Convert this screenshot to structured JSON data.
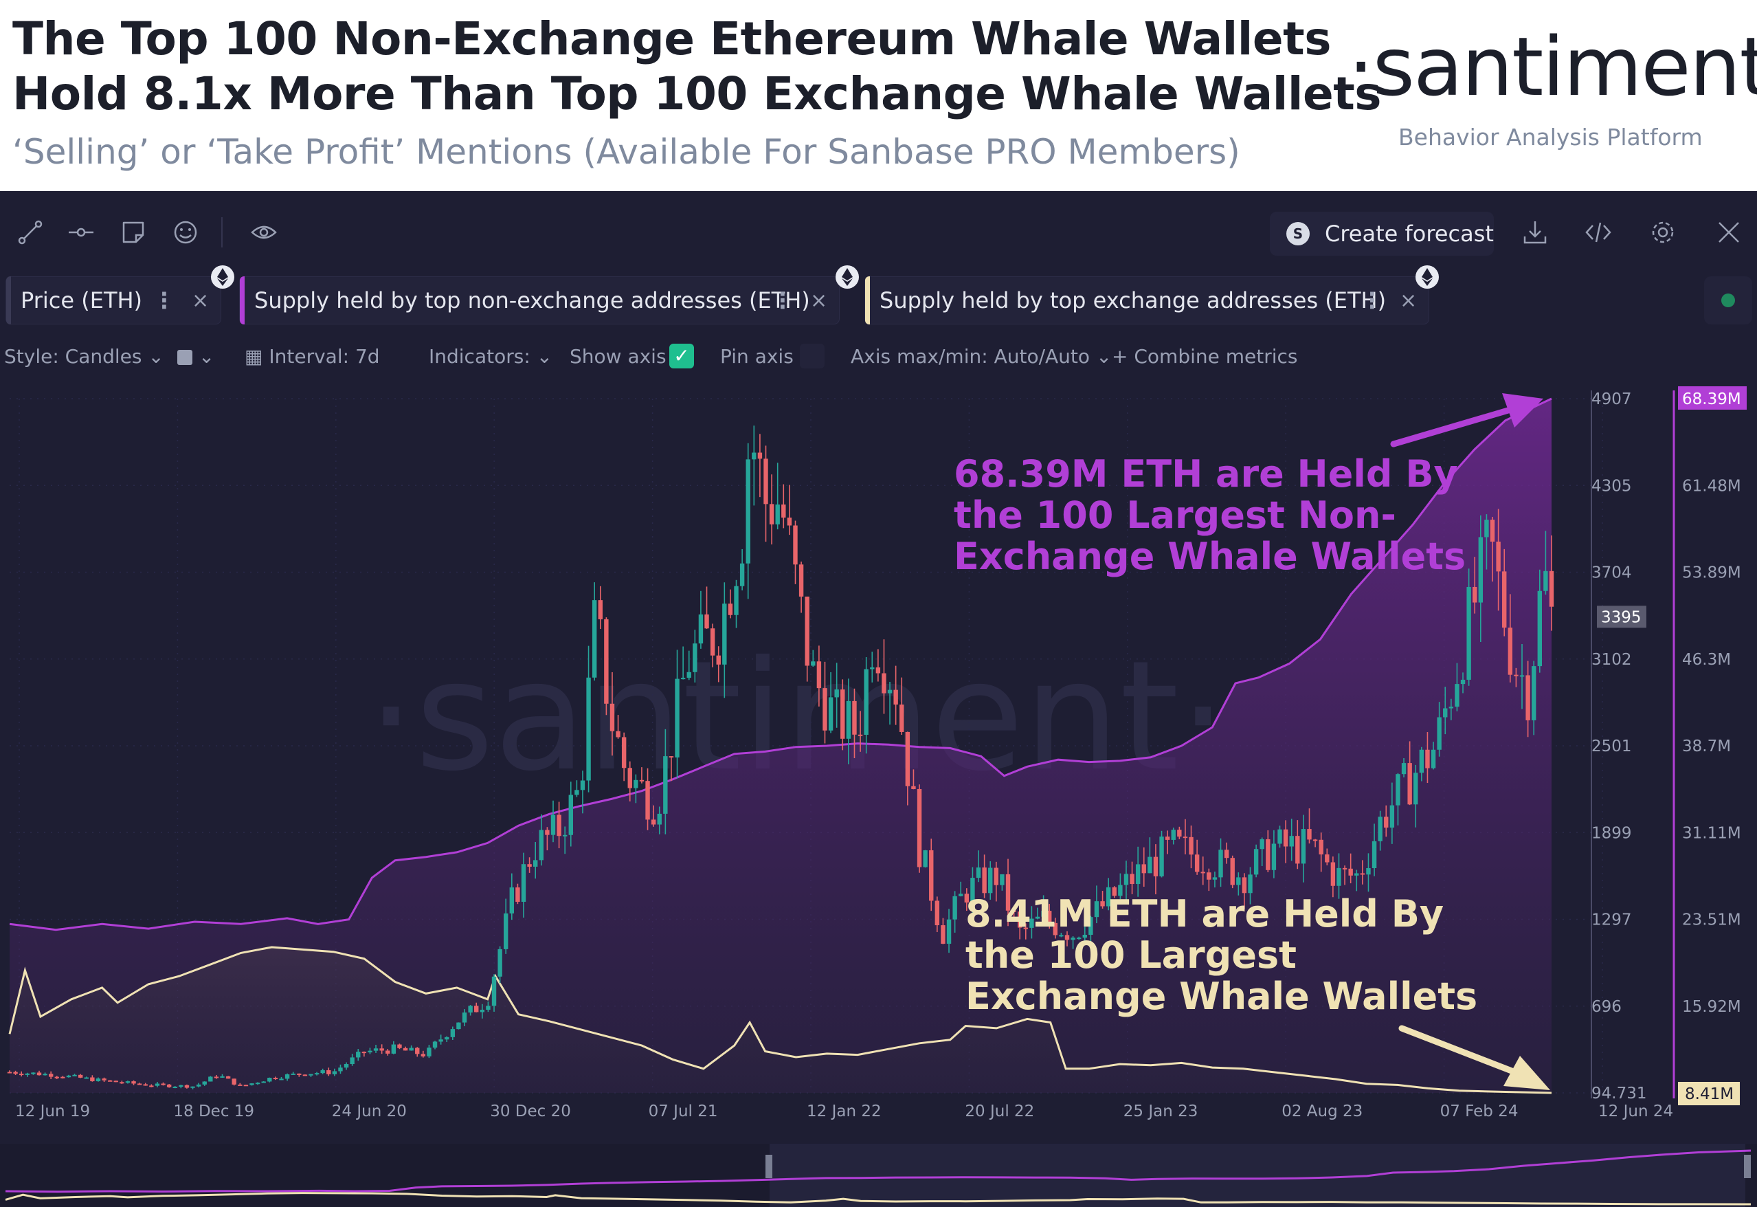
{
  "header": {
    "title_line1": "The Top 100 Non-Exchange Ethereum Whale Wallets",
    "title_line2": "Hold 8.1x More Than Top 100 Exchange Whale Wallets",
    "subtitle": "‘Selling’ or ‘Take Profit’ Mentions (Available For Sanbase PRO Members)",
    "brand": "·santiment·",
    "brand_tagline": "Behavior Analysis Platform"
  },
  "toolbar": {
    "icons": [
      "line-tool-icon",
      "horizontal-ray-icon",
      "note-icon",
      "emoji-icon",
      "eye-icon"
    ],
    "create_forecast_label": "Create forecast",
    "right_icons": [
      "download-icon",
      "code-icon",
      "settings-icon",
      "close-icon"
    ]
  },
  "metrics": [
    {
      "label": "Price (ETH)",
      "color": "#3a3a55"
    },
    {
      "label": "Supply held by top non-exchange addresses (ETH)",
      "color": "#b13fd6"
    },
    {
      "label": "Supply held by top exchange addresses (ETH)",
      "color": "#f0e2b4"
    }
  ],
  "settings": {
    "style": "Style: Candles",
    "interval": "Interval: 7d",
    "indicators": "Indicators:",
    "show_axis": "Show axis",
    "pin_axis": "Pin axis",
    "axis_maxmin": "Axis max/min: Auto/Auto",
    "combine": "Combine metrics"
  },
  "colors": {
    "background": "#1e1e33",
    "up_candle": "#26a69a",
    "down_candle": "#e9656a",
    "non_exchange": "#b13fd6",
    "exchange": "#f0e2b4",
    "annotation_purple": "#b13fd6",
    "annotation_cream": "#f0e2b4"
  },
  "chart_data": {
    "type": "candlestick+area",
    "watermark": "·santiment·",
    "x_tick_labels": [
      "12 Jun 19",
      "18 Dec 19",
      "24 Jun 20",
      "30 Dec 20",
      "07 Jul 21",
      "12 Jan 22",
      "20 Jul 22",
      "25 Jan 23",
      "02 Aug 23",
      "07 Feb 24",
      "12 Jun 24"
    ],
    "price_axis": {
      "ticks": [
        "4907",
        "4305",
        "3704",
        "3102",
        "2501",
        "1899",
        "1297",
        "696",
        "94.731"
      ],
      "min": 94.731,
      "max": 4907,
      "current": "3395"
    },
    "supply_axis": {
      "ticks": [
        "68.39M",
        "61.48M",
        "53.89M",
        "46.3M",
        "38.7M",
        "31.11M",
        "23.51M",
        "15.92M",
        "8.41M"
      ],
      "min": 8.41,
      "max": 68.39,
      "unit": "M",
      "current_non_exchange": "68.39M",
      "current_exchange": "8.41M"
    },
    "series": [
      {
        "name": "Supply held by top non-exchange addresses (ETH)",
        "unit": "M ETH",
        "points": [
          [
            0,
            23.0
          ],
          [
            0.03,
            22.5
          ],
          [
            0.06,
            23.0
          ],
          [
            0.09,
            22.6
          ],
          [
            0.12,
            23.2
          ],
          [
            0.15,
            23.0
          ],
          [
            0.18,
            23.5
          ],
          [
            0.2,
            23.0
          ],
          [
            0.22,
            23.4
          ],
          [
            0.235,
            27.0
          ],
          [
            0.25,
            28.5
          ],
          [
            0.27,
            28.8
          ],
          [
            0.29,
            29.2
          ],
          [
            0.31,
            30.0
          ],
          [
            0.33,
            31.5
          ],
          [
            0.35,
            32.5
          ],
          [
            0.37,
            33.2
          ],
          [
            0.39,
            33.8
          ],
          [
            0.41,
            34.5
          ],
          [
            0.43,
            35.5
          ],
          [
            0.45,
            36.6
          ],
          [
            0.47,
            37.7
          ],
          [
            0.49,
            37.9
          ],
          [
            0.51,
            38.3
          ],
          [
            0.53,
            38.4
          ],
          [
            0.55,
            38.6
          ],
          [
            0.57,
            38.5
          ],
          [
            0.59,
            38.3
          ],
          [
            0.61,
            38.2
          ],
          [
            0.63,
            37.5
          ],
          [
            0.645,
            35.8
          ],
          [
            0.66,
            36.6
          ],
          [
            0.68,
            37.2
          ],
          [
            0.7,
            37.0
          ],
          [
            0.72,
            37.1
          ],
          [
            0.74,
            37.4
          ],
          [
            0.76,
            38.4
          ],
          [
            0.78,
            40.0
          ],
          [
            0.795,
            43.8
          ],
          [
            0.81,
            44.3
          ],
          [
            0.83,
            45.5
          ],
          [
            0.85,
            47.6
          ],
          [
            0.87,
            51.5
          ],
          [
            0.89,
            54.5
          ],
          [
            0.91,
            57.5
          ],
          [
            0.93,
            61.0
          ],
          [
            0.95,
            64.0
          ],
          [
            0.97,
            66.5
          ],
          [
            1.0,
            68.39
          ]
        ]
      },
      {
        "name": "Supply held by top exchange addresses (ETH)",
        "unit": "M ETH",
        "points": [
          [
            0,
            13.5
          ],
          [
            0.01,
            19.0
          ],
          [
            0.02,
            15.0
          ],
          [
            0.04,
            16.5
          ],
          [
            0.06,
            17.5
          ],
          [
            0.07,
            16.2
          ],
          [
            0.09,
            17.8
          ],
          [
            0.11,
            18.5
          ],
          [
            0.13,
            19.5
          ],
          [
            0.15,
            20.5
          ],
          [
            0.17,
            21.0
          ],
          [
            0.19,
            20.8
          ],
          [
            0.21,
            20.6
          ],
          [
            0.23,
            20.0
          ],
          [
            0.25,
            18.0
          ],
          [
            0.27,
            17.0
          ],
          [
            0.29,
            17.5
          ],
          [
            0.31,
            16.5
          ],
          [
            0.315,
            18.5
          ],
          [
            0.33,
            15.2
          ],
          [
            0.35,
            14.6
          ],
          [
            0.37,
            13.9
          ],
          [
            0.39,
            13.2
          ],
          [
            0.41,
            12.5
          ],
          [
            0.43,
            11.3
          ],
          [
            0.45,
            10.5
          ],
          [
            0.47,
            12.5
          ],
          [
            0.48,
            14.5
          ],
          [
            0.49,
            12.0
          ],
          [
            0.51,
            11.5
          ],
          [
            0.53,
            11.8
          ],
          [
            0.55,
            11.7
          ],
          [
            0.57,
            12.2
          ],
          [
            0.59,
            12.7
          ],
          [
            0.61,
            13.0
          ],
          [
            0.62,
            14.2
          ],
          [
            0.64,
            14.0
          ],
          [
            0.66,
            14.8
          ],
          [
            0.675,
            14.5
          ],
          [
            0.685,
            10.5
          ],
          [
            0.7,
            10.5
          ],
          [
            0.72,
            10.9
          ],
          [
            0.74,
            10.8
          ],
          [
            0.76,
            11.0
          ],
          [
            0.78,
            10.6
          ],
          [
            0.8,
            10.5
          ],
          [
            0.82,
            10.2
          ],
          [
            0.84,
            9.9
          ],
          [
            0.86,
            9.6
          ],
          [
            0.88,
            9.2
          ],
          [
            0.9,
            9.1
          ],
          [
            0.92,
            8.8
          ],
          [
            0.94,
            8.6
          ],
          [
            0.97,
            8.5
          ],
          [
            1.0,
            8.41
          ]
        ]
      },
      {
        "name": "Price (ETH)",
        "unit": "USD",
        "sampling": "weekly candles, sketched from anchor closes",
        "closes": [
          [
            0,
            240
          ],
          [
            0.03,
            220
          ],
          [
            0.06,
            180
          ],
          [
            0.09,
            150
          ],
          [
            0.12,
            140
          ],
          [
            0.135,
            220
          ],
          [
            0.15,
            140
          ],
          [
            0.17,
            200
          ],
          [
            0.19,
            230
          ],
          [
            0.21,
            240
          ],
          [
            0.23,
            380
          ],
          [
            0.25,
            400
          ],
          [
            0.27,
            360
          ],
          [
            0.29,
            590
          ],
          [
            0.31,
            740
          ],
          [
            0.325,
            1400
          ],
          [
            0.34,
            1800
          ],
          [
            0.355,
            1900
          ],
          [
            0.37,
            2200
          ],
          [
            0.38,
            3400
          ],
          [
            0.39,
            2700
          ],
          [
            0.4,
            2300
          ],
          [
            0.42,
            2100
          ],
          [
            0.44,
            3100
          ],
          [
            0.46,
            3300
          ],
          [
            0.475,
            4000
          ],
          [
            0.48,
            4700
          ],
          [
            0.49,
            4200
          ],
          [
            0.5,
            4200
          ],
          [
            0.52,
            3000
          ],
          [
            0.535,
            2700
          ],
          [
            0.55,
            2600
          ],
          [
            0.56,
            3300
          ],
          [
            0.575,
            2900
          ],
          [
            0.59,
            1800
          ],
          [
            0.605,
            1200
          ],
          [
            0.62,
            1500
          ],
          [
            0.64,
            1600
          ],
          [
            0.655,
            1200
          ],
          [
            0.67,
            1300
          ],
          [
            0.69,
            1200
          ],
          [
            0.71,
            1400
          ],
          [
            0.73,
            1600
          ],
          [
            0.755,
            1800
          ],
          [
            0.78,
            1700
          ],
          [
            0.8,
            1600
          ],
          [
            0.82,
            1800
          ],
          [
            0.845,
            1800
          ],
          [
            0.86,
            1600
          ],
          [
            0.875,
            1600
          ],
          [
            0.89,
            2000
          ],
          [
            0.91,
            2300
          ],
          [
            0.925,
            2500
          ],
          [
            0.945,
            3300
          ],
          [
            0.96,
            3900
          ],
          [
            0.975,
            3100
          ],
          [
            0.985,
            2900
          ],
          [
            0.995,
            3700
          ],
          [
            1.0,
            3395
          ]
        ]
      }
    ],
    "annotations": [
      {
        "label": "68.39M ETH are Held By the 100 Largest Non-Exchange Whale Wallets",
        "lines": [
          "68.39M ETH are Held By",
          "the 100 Largest Non-",
          "Exchange Whale Wallets"
        ]
      },
      {
        "label": "8.41M ETH are Held By the 100 Largest Exchange Whale Wallets",
        "lines": [
          "8.41M ETH are Held By",
          "the 100 Largest",
          "Exchange Whale Wallets"
        ]
      }
    ]
  }
}
